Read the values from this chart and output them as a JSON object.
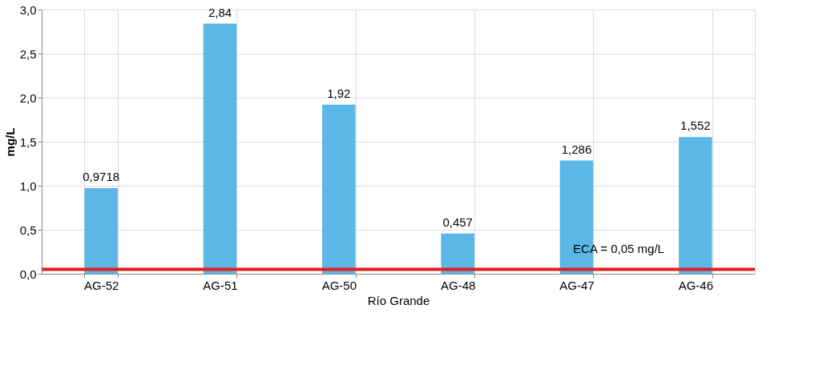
{
  "chart_data": {
    "type": "bar",
    "xlabel": "Río Grande",
    "ylabel": "mg/L",
    "categories": [
      "AG-52",
      "AG-51",
      "AG-50",
      "AG-48",
      "AG-47",
      "AG-46"
    ],
    "values": [
      0.9718,
      2.84,
      1.92,
      0.457,
      1.286,
      1.552
    ],
    "value_labels": [
      "0,9718",
      "2,84",
      "1,92",
      "0,457",
      "1,286",
      "1,552"
    ],
    "color": "#5bb8e6",
    "ylim": [
      0,
      3
    ],
    "yticks": [
      {
        "value": 0,
        "label": "0,0"
      },
      {
        "value": 0.5,
        "label": "0,5"
      },
      {
        "value": 1,
        "label": "1,0"
      },
      {
        "value": 1.5,
        "label": "1,5"
      },
      {
        "value": 2,
        "label": "2,0"
      },
      {
        "value": 2.5,
        "label": "2,5"
      },
      {
        "value": 3,
        "label": "3,0"
      }
    ],
    "ref_lines": [
      {
        "axis": "y",
        "value": 0.05,
        "label": "ECA = 0,05 mg/L",
        "color": "#e02020"
      }
    ],
    "grid": true
  }
}
